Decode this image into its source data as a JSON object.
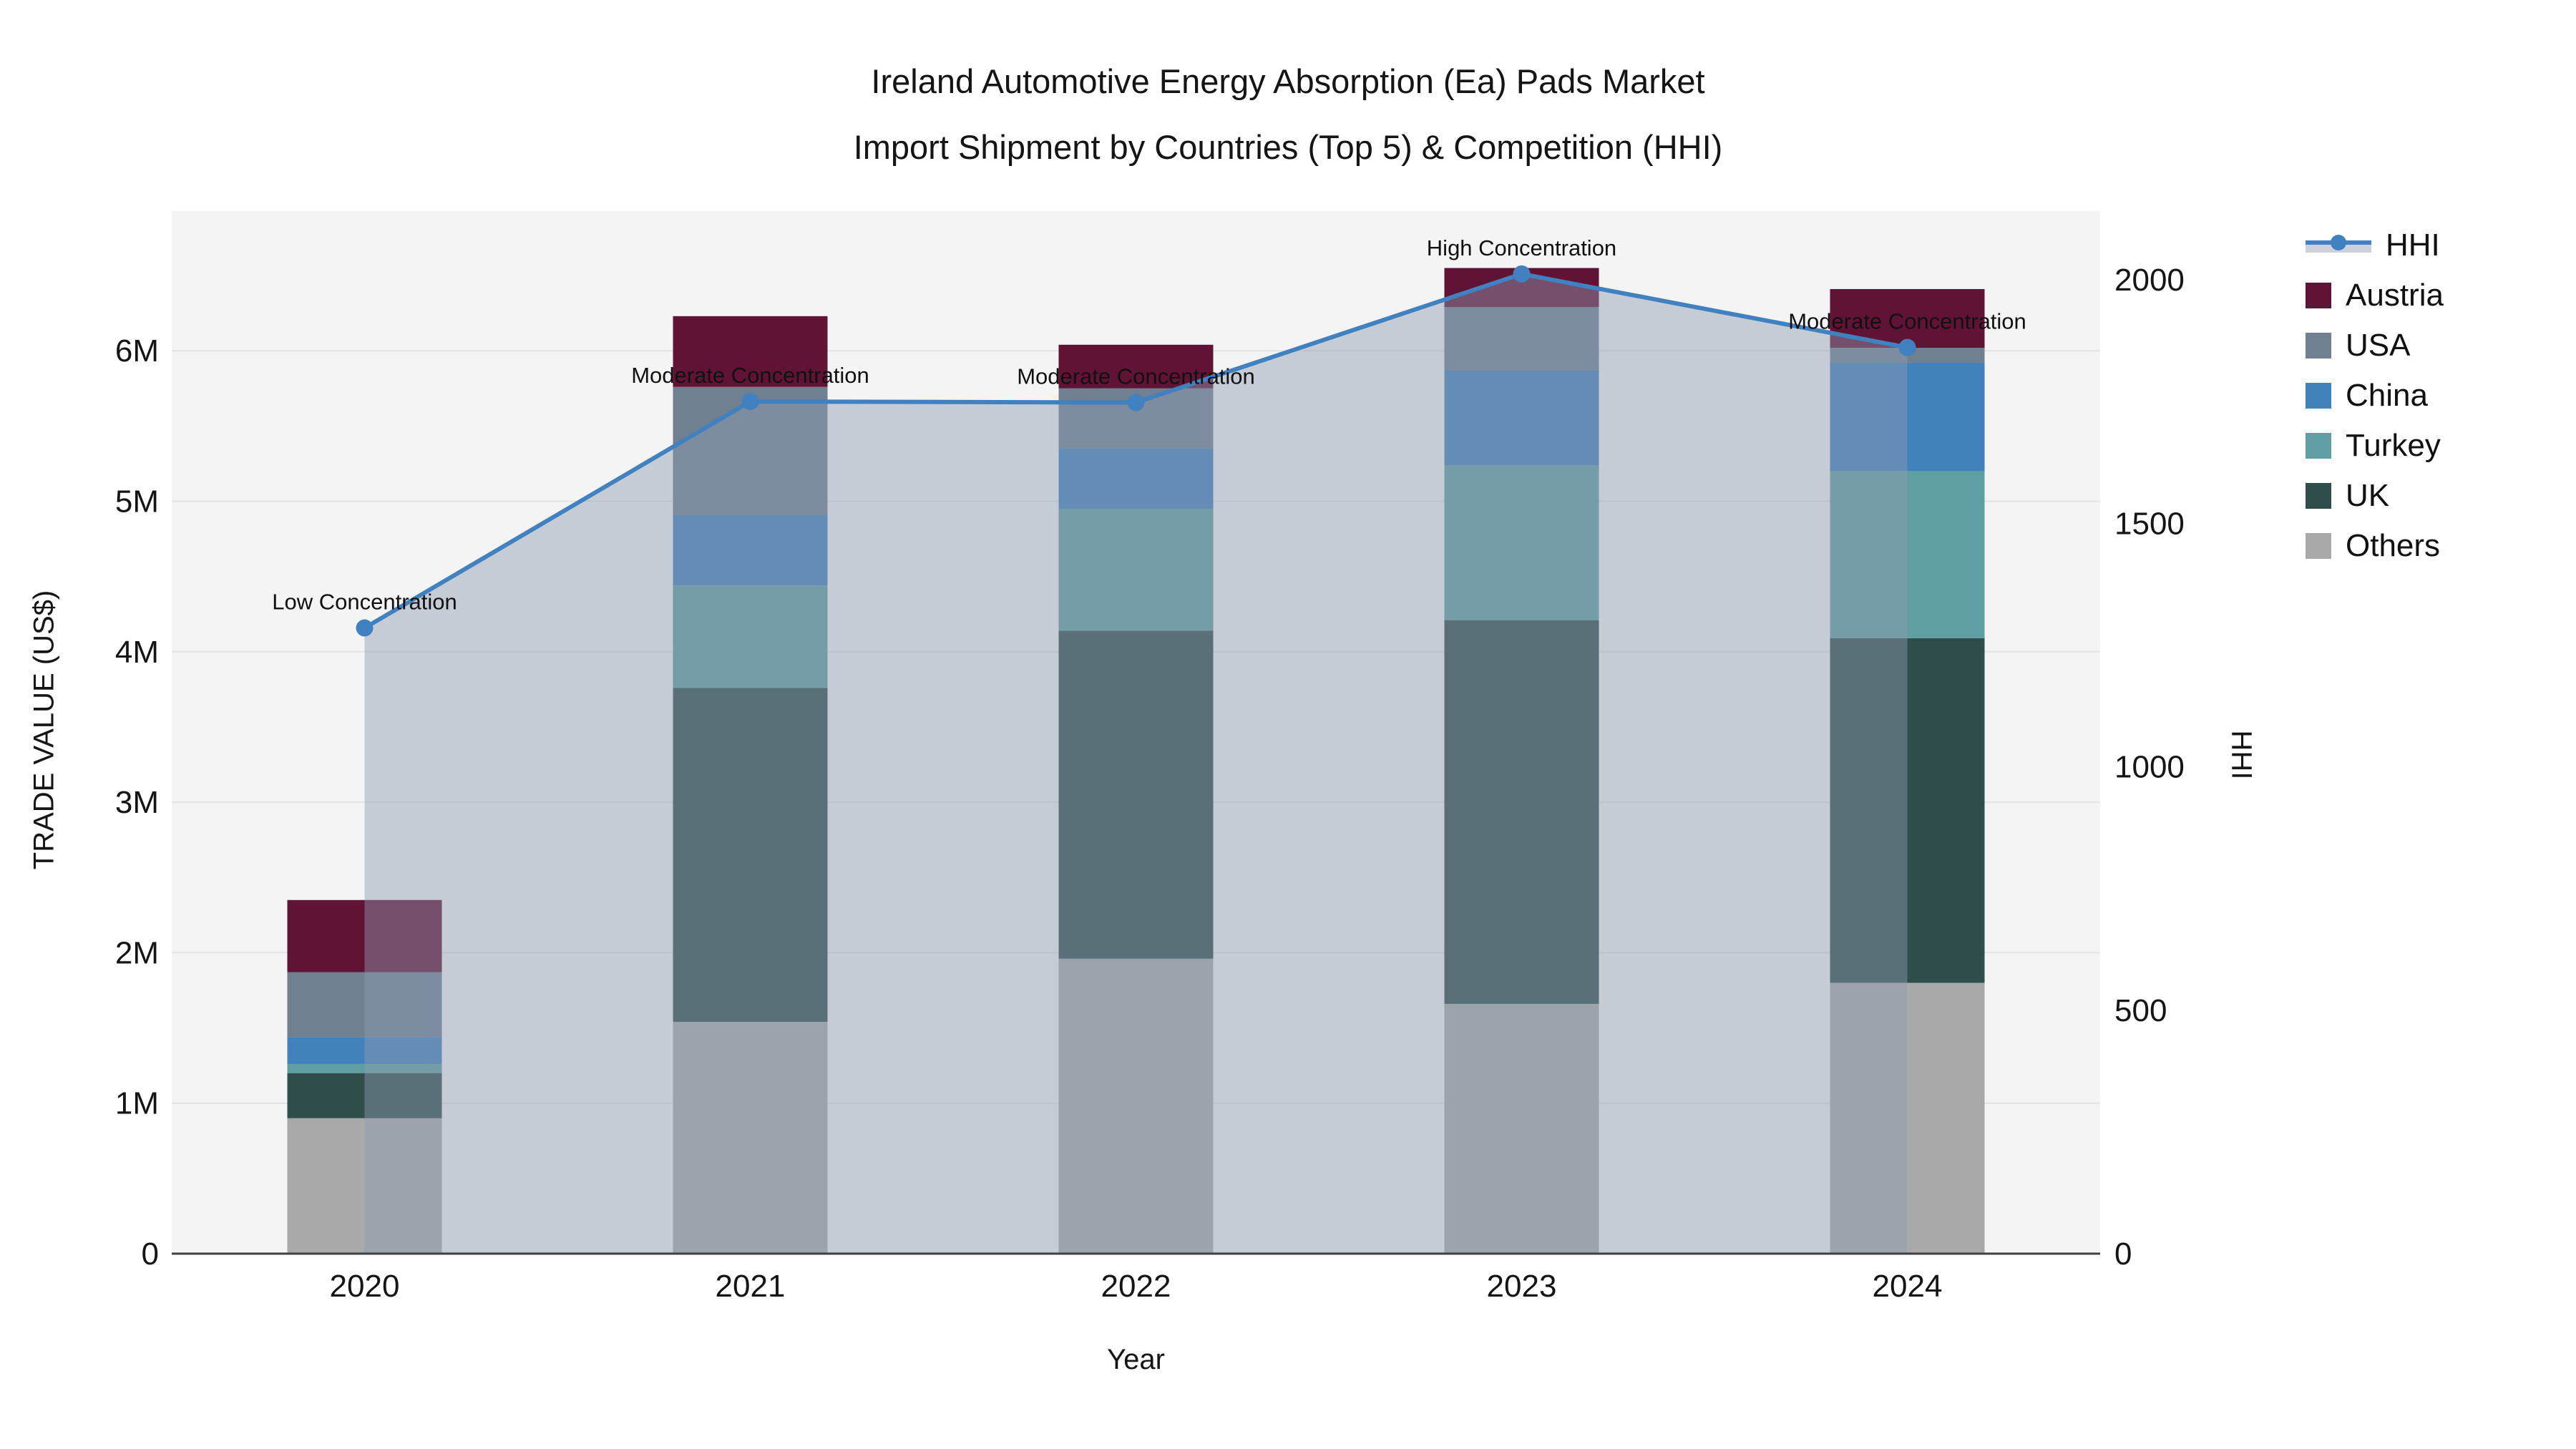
{
  "title": {
    "line1": "Ireland Automotive Energy Absorption (Ea) Pads Market",
    "line2": "Import Shipment by Countries (Top 5) & Competition (HHI)"
  },
  "chart_data": {
    "type": "stacked-bar with line overlay (dual axis)",
    "categories": [
      "2020",
      "2021",
      "2022",
      "2023",
      "2024"
    ],
    "x_axis_title": "Year",
    "y_axis_left": {
      "title": "TRADE VALUE (US$)",
      "tick_labels": [
        "0",
        "1M",
        "2M",
        "3M",
        "4M",
        "5M",
        "6M"
      ],
      "tick_values": [
        0,
        1,
        2,
        3,
        4,
        5,
        6
      ],
      "units": "millions US$"
    },
    "y_axis_right": {
      "title": "HHI",
      "tick_labels": [
        "0",
        "500",
        "1000",
        "1500",
        "2000"
      ],
      "tick_values": [
        0,
        500,
        1000,
        1500,
        2000
      ]
    },
    "series": [
      {
        "name": "Others",
        "color": "#a9a9a9",
        "values": [
          0.9,
          1.54,
          1.96,
          1.66,
          1.8
        ]
      },
      {
        "name": "UK",
        "color": "#2e4d4b",
        "values": [
          0.3,
          2.22,
          2.18,
          2.55,
          2.29
        ]
      },
      {
        "name": "Turkey",
        "color": "#5f9fa1",
        "values": [
          0.06,
          0.68,
          0.81,
          1.03,
          1.11
        ]
      },
      {
        "name": "China",
        "color": "#4182bb",
        "values": [
          0.18,
          0.47,
          0.4,
          0.63,
          0.72
        ]
      },
      {
        "name": "USA",
        "color": "#708090",
        "values": [
          0.43,
          0.85,
          0.4,
          0.42,
          0.1
        ]
      },
      {
        "name": "Austria",
        "color": "#611335",
        "values": [
          0.48,
          0.47,
          0.29,
          0.26,
          0.39
        ]
      }
    ],
    "stack_totals": [
      2.35,
      6.23,
      6.04,
      6.55,
      6.41
    ],
    "line_series": {
      "name": "HHI",
      "color": "#4181bf",
      "area_fill": "rgba(143,156,176,0.45)",
      "values": [
        1285,
        1750,
        1748,
        2012,
        1861
      ]
    },
    "annotations": [
      {
        "category": "2020",
        "label": "Low Concentration"
      },
      {
        "category": "2021",
        "label": "Moderate Concentration"
      },
      {
        "category": "2022",
        "label": "Moderate Concentration"
      },
      {
        "category": "2023",
        "label": "High Concentration"
      },
      {
        "category": "2024",
        "label": "Moderate Concentration"
      }
    ],
    "plot_background": "#f4f4f5",
    "gridline_color": "#e3e3e5",
    "axis_line_color": "#3f3f3f",
    "legend_position": "right"
  },
  "legend": {
    "items": [
      {
        "label": "HHI",
        "type": "line",
        "color": "#4181bf"
      },
      {
        "label": "Austria",
        "type": "swatch",
        "color": "#611335"
      },
      {
        "label": "USA",
        "type": "swatch",
        "color": "#708090"
      },
      {
        "label": "China",
        "type": "swatch",
        "color": "#4182bb"
      },
      {
        "label": "Turkey",
        "type": "swatch",
        "color": "#5f9fa1"
      },
      {
        "label": "UK",
        "type": "swatch",
        "color": "#2e4d4b"
      },
      {
        "label": "Others",
        "type": "swatch",
        "color": "#a9a9a9"
      }
    ]
  }
}
